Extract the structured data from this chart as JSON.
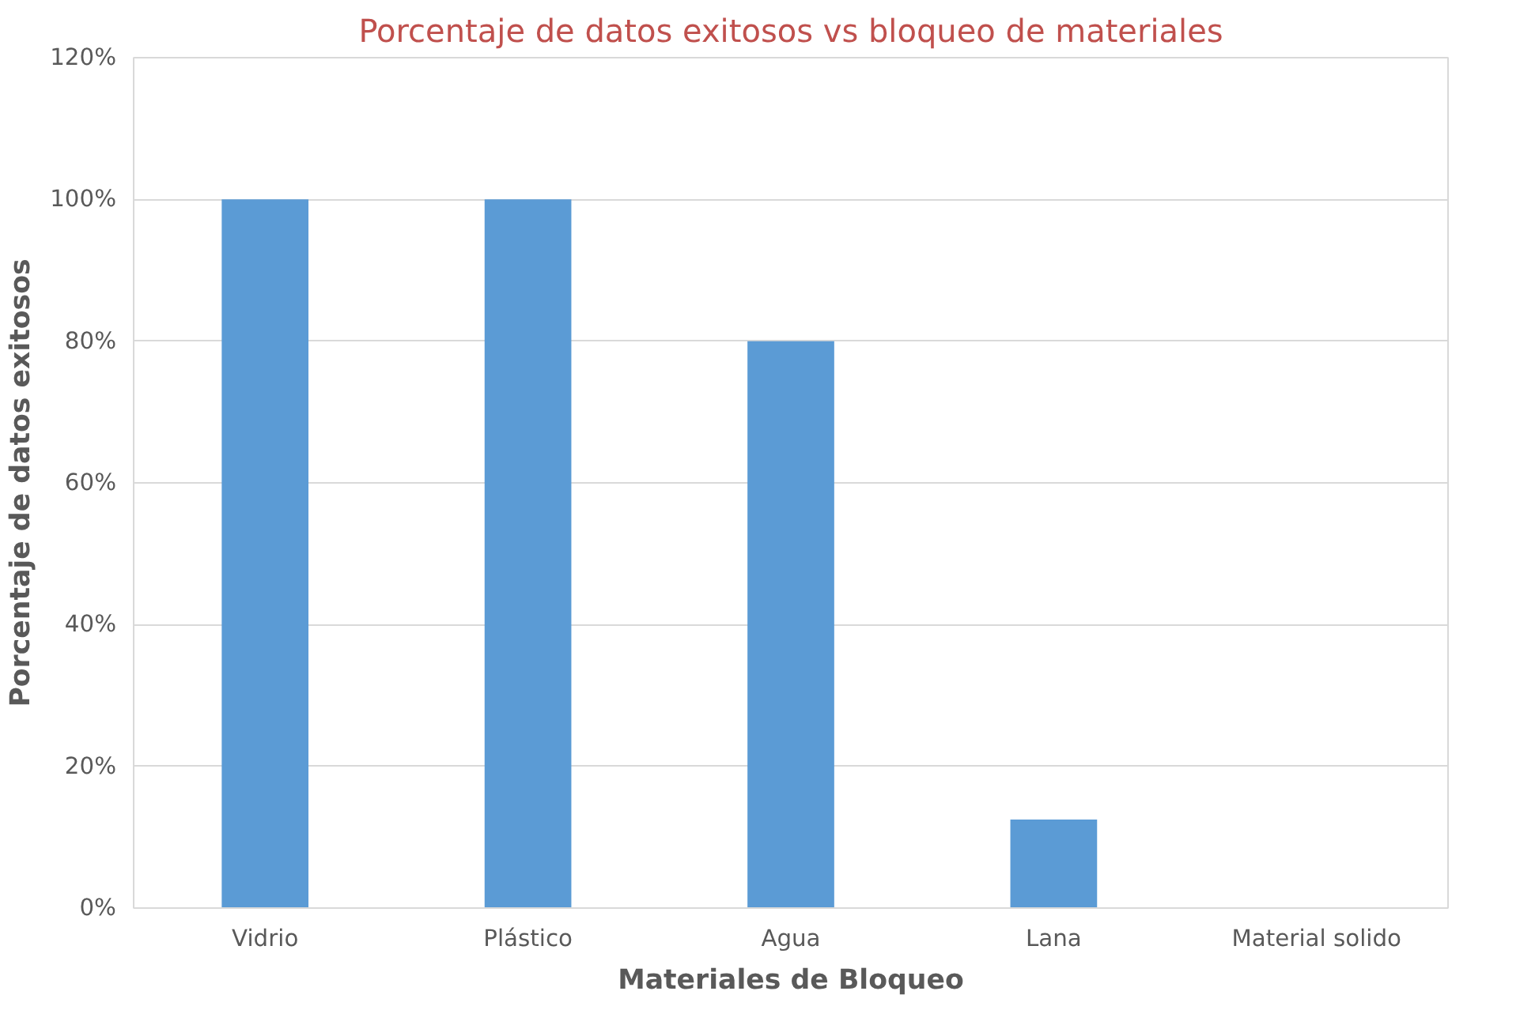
{
  "chart_data": {
    "type": "bar",
    "title": "Porcentaje de datos exitosos vs bloqueo de materiales",
    "xlabel": "Materiales de Bloqueo",
    "ylabel": "Porcentaje de datos exitosos",
    "categories": [
      "Vidrio",
      "Plástico",
      "Agua",
      "Lana",
      "Material solido"
    ],
    "values": [
      100,
      100,
      80,
      12.5,
      0
    ],
    "color": "#5b9bd5",
    "ylim": [
      0,
      120
    ],
    "yticks": [
      {
        "value": 0,
        "label": "0%"
      },
      {
        "value": 20,
        "label": "20%"
      },
      {
        "value": 40,
        "label": "40%"
      },
      {
        "value": 60,
        "label": "60%"
      },
      {
        "value": 80,
        "label": "80%"
      },
      {
        "value": 100,
        "label": "100%"
      },
      {
        "value": 120,
        "label": "120%"
      }
    ],
    "grid": "y"
  }
}
